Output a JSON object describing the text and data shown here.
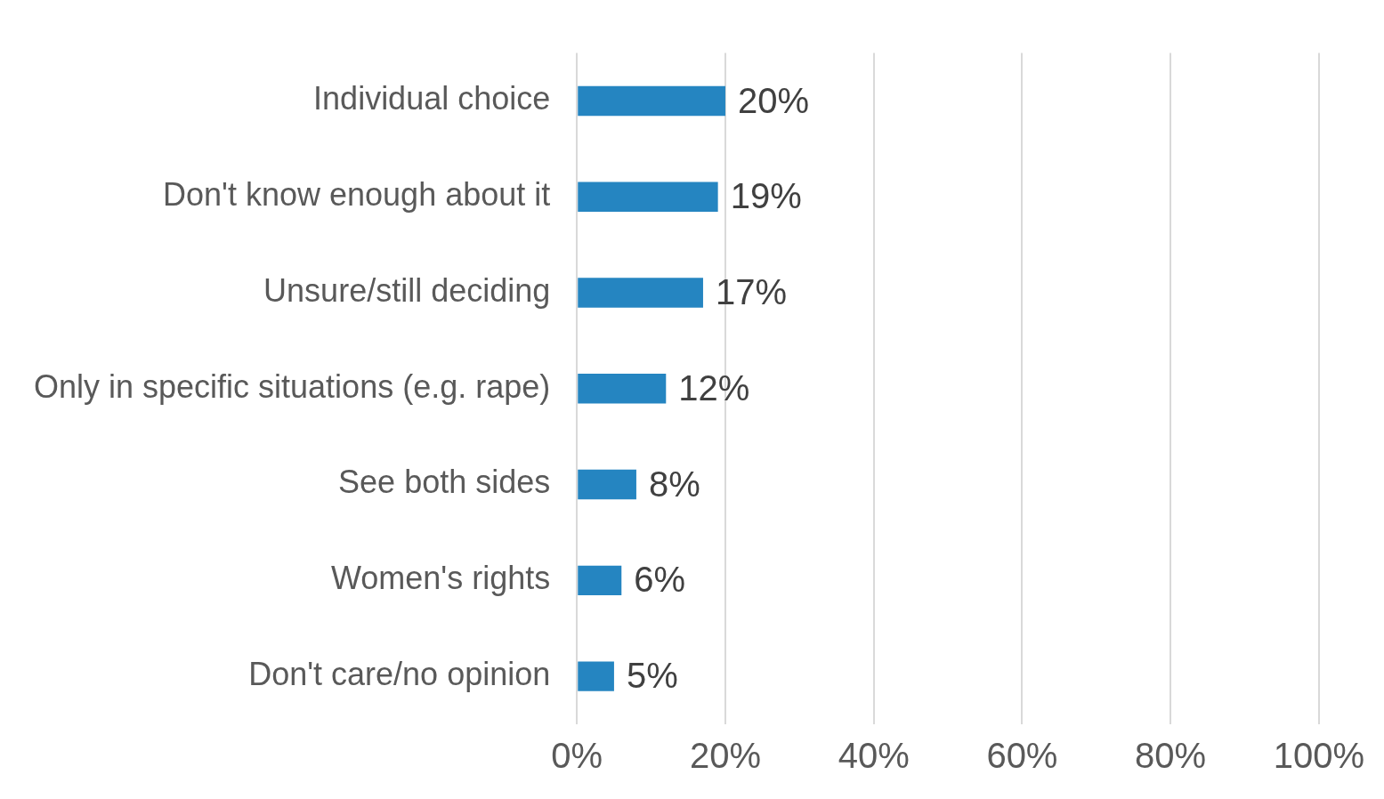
{
  "chart_data": {
    "type": "bar",
    "orientation": "horizontal",
    "categories": [
      "Individual choice",
      "Don't know enough about it",
      "Unsure/still deciding",
      "Only in specific situations (e.g. rape)",
      "See both sides",
      "Women's rights",
      "Don't care/no opinion"
    ],
    "values": [
      20,
      19,
      17,
      12,
      8,
      6,
      5
    ],
    "value_labels": [
      "20%",
      "19%",
      "17%",
      "12%",
      "8%",
      "6%",
      "5%"
    ],
    "color": "#2585c1",
    "xlim": [
      0,
      100
    ],
    "xticks": [
      {
        "value": 0,
        "label": "0%"
      },
      {
        "value": 20,
        "label": "20%"
      },
      {
        "value": 40,
        "label": "40%"
      },
      {
        "value": 60,
        "label": "60%"
      },
      {
        "value": 80,
        "label": "80%"
      },
      {
        "value": 100,
        "label": "100%"
      }
    ],
    "grid": "x",
    "legend": false
  }
}
